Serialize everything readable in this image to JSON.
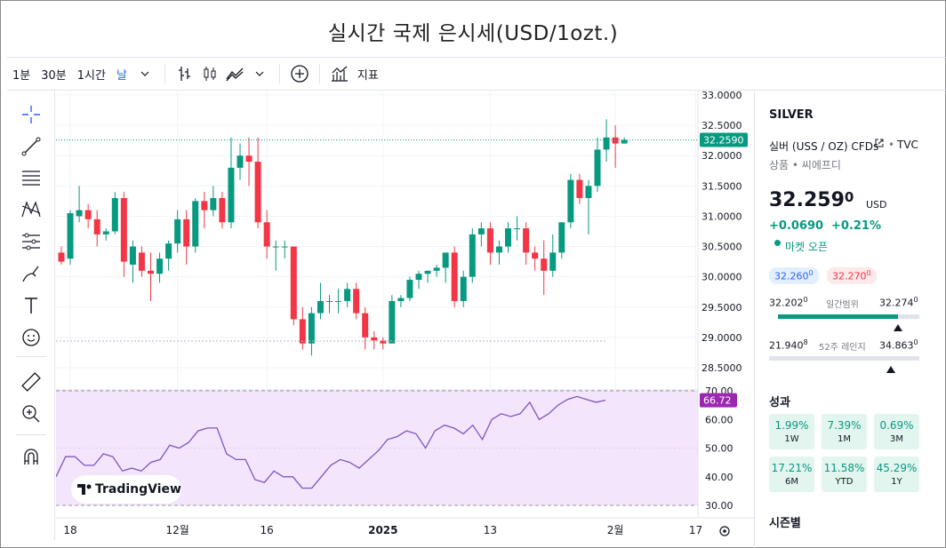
{
  "page": {
    "title": "실시간 국제 은시세(USD/1ozt.)"
  },
  "toolbar": {
    "intervals": [
      "1분",
      "30분",
      "1시간",
      "날"
    ],
    "indicators_label": "지표"
  },
  "colors": {
    "up": "#089981",
    "down": "#f23645",
    "rsi_line": "#7e57c2",
    "rsi_bg": "#f3e5fb",
    "rsi_badge": "#9c27b0"
  },
  "chart_data": [
    {
      "type": "candlestick",
      "price_axis": {
        "min": 28.5,
        "max": 33.0,
        "ticks": [
          "33.0000",
          "32.5000",
          "32.0000",
          "31.5000",
          "31.0000",
          "30.5000",
          "30.0000",
          "29.5000",
          "29.0000",
          "28.5000"
        ]
      },
      "time_axis": {
        "ticks": [
          "18",
          "12월",
          "16",
          "2025",
          "13",
          "2월",
          "17"
        ]
      },
      "last_price_label": "32.2590",
      "last_price": 32.259,
      "candles": [
        [
          30.4,
          30.5,
          30.2,
          30.25
        ],
        [
          30.3,
          31.1,
          30.2,
          31.05
        ],
        [
          31.0,
          31.5,
          30.9,
          31.1
        ],
        [
          31.1,
          31.2,
          30.8,
          30.95
        ],
        [
          30.95,
          31.1,
          30.5,
          30.7
        ],
        [
          30.7,
          30.8,
          30.6,
          30.75
        ],
        [
          30.75,
          31.4,
          30.7,
          31.3
        ],
        [
          31.3,
          31.4,
          30.0,
          30.25
        ],
        [
          30.2,
          30.6,
          29.9,
          30.5
        ],
        [
          30.4,
          30.5,
          30.0,
          30.1
        ],
        [
          30.1,
          30.4,
          29.6,
          30.05
        ],
        [
          30.05,
          30.4,
          29.9,
          30.3
        ],
        [
          30.3,
          30.6,
          30.1,
          30.55
        ],
        [
          30.55,
          31.1,
          30.4,
          30.95
        ],
        [
          30.95,
          31.1,
          30.2,
          30.5
        ],
        [
          30.5,
          31.3,
          30.4,
          31.25
        ],
        [
          31.25,
          31.4,
          30.8,
          31.1
        ],
        [
          31.1,
          31.5,
          31.0,
          31.3
        ],
        [
          31.3,
          31.4,
          30.8,
          30.9
        ],
        [
          30.9,
          32.3,
          30.8,
          31.8
        ],
        [
          31.8,
          32.2,
          31.6,
          32.0
        ],
        [
          32.0,
          32.3,
          31.5,
          31.9
        ],
        [
          31.9,
          32.3,
          30.8,
          30.9
        ],
        [
          30.9,
          31.1,
          30.3,
          30.5
        ],
        [
          30.5,
          30.6,
          30.1,
          30.5
        ],
        [
          30.5,
          30.6,
          30.3,
          30.5
        ],
        [
          30.5,
          30.5,
          29.2,
          29.3
        ],
        [
          29.3,
          29.5,
          28.8,
          28.9
        ],
        [
          28.9,
          29.5,
          28.7,
          29.4
        ],
        [
          29.4,
          29.9,
          29.3,
          29.6
        ],
        [
          29.6,
          29.7,
          29.4,
          29.6
        ],
        [
          29.6,
          29.8,
          29.4,
          29.6
        ],
        [
          29.6,
          29.9,
          29.5,
          29.8
        ],
        [
          29.8,
          29.9,
          29.3,
          29.4
        ],
        [
          29.4,
          29.5,
          28.8,
          29.0
        ],
        [
          29.0,
          29.1,
          28.8,
          28.95
        ],
        [
          28.95,
          29.0,
          28.8,
          28.9
        ],
        [
          28.9,
          29.7,
          28.9,
          29.6
        ],
        [
          29.6,
          29.7,
          29.5,
          29.65
        ],
        [
          29.65,
          30.0,
          29.6,
          29.95
        ],
        [
          29.95,
          30.1,
          29.8,
          30.05
        ],
        [
          30.05,
          30.1,
          29.9,
          30.1
        ],
        [
          30.1,
          30.2,
          30.0,
          30.15
        ],
        [
          30.15,
          30.4,
          29.9,
          30.4
        ],
        [
          30.4,
          30.5,
          29.5,
          29.6
        ],
        [
          29.6,
          30.1,
          29.5,
          30.0
        ],
        [
          30.0,
          30.8,
          29.9,
          30.7
        ],
        [
          30.7,
          30.9,
          30.5,
          30.8
        ],
        [
          30.8,
          30.9,
          30.2,
          30.4
        ],
        [
          30.4,
          30.6,
          30.2,
          30.5
        ],
        [
          30.5,
          30.9,
          30.4,
          30.8
        ],
        [
          30.8,
          31.0,
          30.6,
          30.8
        ],
        [
          30.8,
          30.9,
          30.2,
          30.4
        ],
        [
          30.4,
          30.5,
          30.1,
          30.3
        ],
        [
          30.3,
          30.6,
          29.7,
          30.1
        ],
        [
          30.1,
          30.7,
          30.0,
          30.4
        ],
        [
          30.4,
          30.9,
          30.3,
          30.9
        ],
        [
          30.9,
          31.7,
          30.8,
          31.6
        ],
        [
          31.6,
          31.7,
          31.2,
          31.3
        ],
        [
          31.3,
          31.6,
          30.7,
          31.5
        ],
        [
          31.5,
          32.3,
          31.4,
          32.1
        ],
        [
          32.1,
          32.6,
          31.9,
          32.3
        ],
        [
          32.3,
          32.5,
          31.8,
          32.2
        ],
        [
          32.2,
          32.3,
          32.2,
          32.26
        ]
      ]
    },
    {
      "type": "line",
      "name": "RSI",
      "y_axis": {
        "min": 30,
        "max": 70,
        "ticks": [
          "70.00",
          "60.00",
          "50.00",
          "40.00",
          "30.00"
        ]
      },
      "band": [
        30,
        70
      ],
      "last_value_label": "66.72",
      "values": [
        40,
        47,
        47,
        44,
        44,
        48,
        47,
        42,
        43,
        42,
        45,
        46,
        51,
        50,
        52,
        56,
        57,
        57,
        48,
        46,
        46,
        39,
        38,
        42,
        40,
        40,
        36,
        36,
        40,
        44,
        46,
        45,
        43,
        46,
        49,
        53,
        54,
        56,
        55,
        50,
        56,
        58,
        57,
        55,
        58,
        53,
        60,
        62,
        61,
        62,
        66,
        60,
        62,
        65,
        67,
        68,
        67,
        66,
        66.72
      ]
    }
  ],
  "right_panel": {
    "symbol": "SILVER",
    "description": "실버 (USS / OZ) CFDs",
    "source": "TVC",
    "category": "상품 • 씨에프디",
    "price_main": "32.259",
    "price_sup": "0",
    "currency": "USD",
    "change": "+0.0690",
    "change_pct": "+0.21%",
    "market_status": "마켓 오픈",
    "bid_main": "32.260",
    "bid_sup": "0",
    "ask_main": "32.270",
    "ask_sup": "0",
    "day_low_main": "32.202",
    "day_low_sup": "0",
    "day_range_label": "일간범위",
    "day_high_main": "32.274",
    "day_high_sup": "0",
    "day_range_position": 0.85,
    "w52_low_main": "21.940",
    "w52_low_sup": "8",
    "w52_range_label": "52주 레인지",
    "w52_high_main": "34.863",
    "w52_high_sup": "0",
    "w52_range_position": 0.81,
    "performance_title": "성과",
    "performance": [
      {
        "value": "1.99%",
        "label": "1W"
      },
      {
        "value": "7.39%",
        "label": "1M"
      },
      {
        "value": "0.69%",
        "label": "3M"
      },
      {
        "value": "17.21%",
        "label": "6M"
      },
      {
        "value": "11.58%",
        "label": "YTD"
      },
      {
        "value": "45.29%",
        "label": "1Y"
      }
    ],
    "seasonal_title": "시즌별"
  },
  "tv_logo_text": "TradingView"
}
